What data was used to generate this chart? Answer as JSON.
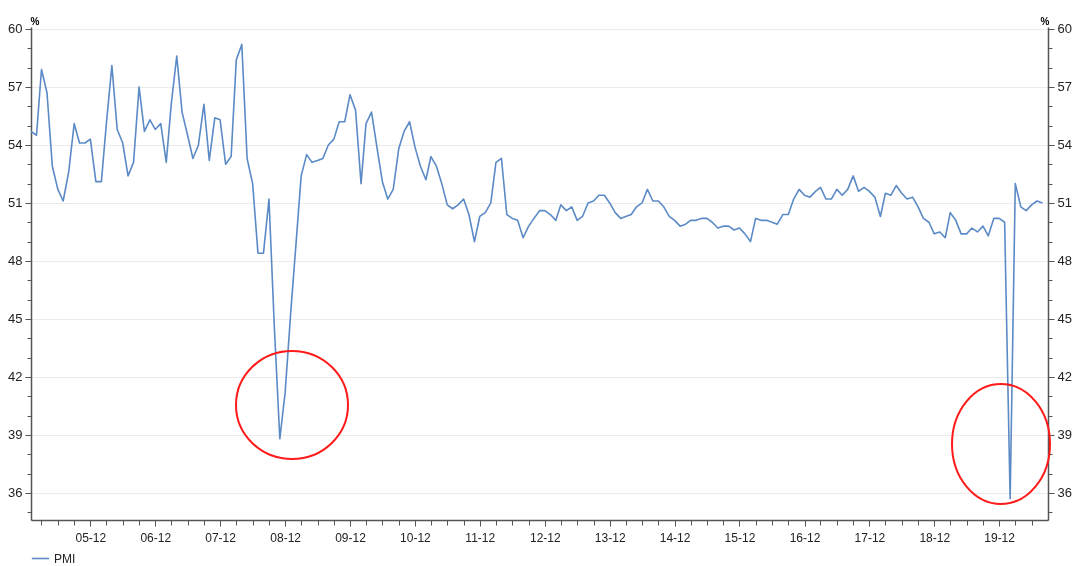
{
  "chart_data": {
    "type": "line",
    "x": [
      "2005-01",
      "2005-02",
      "2005-03",
      "2005-04",
      "2005-05",
      "2005-06",
      "2005-07",
      "2005-08",
      "2005-09",
      "2005-10",
      "2005-11",
      "2005-12",
      "2006-01",
      "2006-02",
      "2006-03",
      "2006-04",
      "2006-05",
      "2006-06",
      "2006-07",
      "2006-08",
      "2006-09",
      "2006-10",
      "2006-11",
      "2006-12",
      "2007-01",
      "2007-02",
      "2007-03",
      "2007-04",
      "2007-05",
      "2007-06",
      "2007-07",
      "2007-08",
      "2007-09",
      "2007-10",
      "2007-11",
      "2007-12",
      "2008-01",
      "2008-02",
      "2008-03",
      "2008-04",
      "2008-05",
      "2008-06",
      "2008-07",
      "2008-08",
      "2008-09",
      "2008-10",
      "2008-11",
      "2008-12",
      "2009-01",
      "2009-02",
      "2009-03",
      "2009-04",
      "2009-05",
      "2009-06",
      "2009-07",
      "2009-08",
      "2009-09",
      "2009-10",
      "2009-11",
      "2009-12",
      "2010-01",
      "2010-02",
      "2010-03",
      "2010-04",
      "2010-05",
      "2010-06",
      "2010-07",
      "2010-08",
      "2010-09",
      "2010-10",
      "2010-11",
      "2010-12",
      "2011-01",
      "2011-02",
      "2011-03",
      "2011-04",
      "2011-05",
      "2011-06",
      "2011-07",
      "2011-08",
      "2011-09",
      "2011-10",
      "2011-11",
      "2011-12",
      "2012-01",
      "2012-02",
      "2012-03",
      "2012-04",
      "2012-05",
      "2012-06",
      "2012-07",
      "2012-08",
      "2012-09",
      "2012-10",
      "2012-11",
      "2012-12",
      "2013-01",
      "2013-02",
      "2013-03",
      "2013-04",
      "2013-05",
      "2013-06",
      "2013-07",
      "2013-08",
      "2013-09",
      "2013-10",
      "2013-11",
      "2013-12",
      "2014-01",
      "2014-02",
      "2014-03",
      "2014-04",
      "2014-05",
      "2014-06",
      "2014-07",
      "2014-08",
      "2014-09",
      "2014-10",
      "2014-11",
      "2014-12",
      "2015-01",
      "2015-02",
      "2015-03",
      "2015-04",
      "2015-05",
      "2015-06",
      "2015-07",
      "2015-08",
      "2015-09",
      "2015-10",
      "2015-11",
      "2015-12",
      "2016-01",
      "2016-02",
      "2016-03",
      "2016-04",
      "2016-05",
      "2016-06",
      "2016-07",
      "2016-08",
      "2016-09",
      "2016-10",
      "2016-11",
      "2016-12",
      "2017-01",
      "2017-02",
      "2017-03",
      "2017-04",
      "2017-05",
      "2017-06",
      "2017-07",
      "2017-08",
      "2017-09",
      "2017-10",
      "2017-11",
      "2017-12",
      "2018-01",
      "2018-02",
      "2018-03",
      "2018-04",
      "2018-05",
      "2018-06",
      "2018-07",
      "2018-08",
      "2018-09",
      "2018-10",
      "2018-11",
      "2018-12",
      "2019-01",
      "2019-02",
      "2019-03",
      "2019-04",
      "2019-05",
      "2019-06",
      "2019-07",
      "2019-08",
      "2019-09",
      "2019-10",
      "2019-11",
      "2019-12",
      "2020-01",
      "2020-02",
      "2020-03",
      "2020-04",
      "2020-05",
      "2020-06",
      "2020-07",
      "2020-08"
    ],
    "series": [
      {
        "name": "PMI",
        "color": "#5b8ac6",
        "values": [
          54.7,
          54.5,
          57.9,
          56.7,
          52.9,
          51.7,
          51.1,
          52.6,
          55.1,
          54.1,
          54.1,
          54.3,
          52.1,
          52.1,
          55.1,
          58.1,
          54.8,
          54.1,
          52.4,
          53.1,
          57.0,
          54.7,
          55.3,
          54.8,
          55.1,
          53.1,
          56.1,
          58.6,
          55.7,
          54.5,
          53.3,
          54.0,
          56.1,
          53.2,
          55.4,
          55.3,
          53.0,
          53.4,
          58.4,
          59.2,
          53.3,
          52.0,
          48.4,
          48.4,
          51.2,
          44.6,
          38.8,
          41.2,
          45.3,
          49.0,
          52.4,
          53.5,
          53.1,
          53.2,
          53.3,
          54.0,
          54.3,
          55.2,
          55.2,
          56.6,
          55.8,
          52.0,
          55.1,
          55.7,
          53.9,
          52.1,
          51.2,
          51.7,
          53.8,
          54.7,
          55.2,
          53.9,
          52.9,
          52.2,
          53.4,
          52.9,
          52.0,
          50.9,
          50.7,
          50.9,
          51.2,
          50.4,
          49.0,
          50.3,
          50.5,
          51.0,
          53.1,
          53.3,
          50.4,
          50.2,
          50.1,
          49.2,
          49.8,
          50.2,
          50.6,
          50.6,
          50.4,
          50.1,
          50.9,
          50.6,
          50.8,
          50.1,
          50.3,
          51.0,
          51.1,
          51.4,
          51.4,
          51.0,
          50.5,
          50.2,
          50.3,
          50.4,
          50.8,
          51.0,
          51.7,
          51.1,
          51.1,
          50.8,
          50.3,
          50.1,
          49.8,
          49.9,
          50.1,
          50.1,
          50.2,
          50.2,
          50.0,
          49.7,
          49.8,
          49.8,
          49.6,
          49.7,
          49.4,
          49.0,
          50.2,
          50.1,
          50.1,
          50.0,
          49.9,
          50.4,
          50.4,
          51.2,
          51.7,
          51.4,
          51.3,
          51.6,
          51.8,
          51.2,
          51.2,
          51.7,
          51.4,
          51.7,
          52.4,
          51.6,
          51.8,
          51.6,
          51.3,
          50.3,
          51.5,
          51.4,
          51.9,
          51.5,
          51.2,
          51.3,
          50.8,
          50.2,
          50.0,
          49.4,
          49.5,
          49.2,
          50.5,
          50.1,
          49.4,
          49.4,
          49.7,
          49.5,
          49.8,
          49.3,
          50.2,
          50.2,
          50.0,
          35.7,
          52.0,
          50.8,
          50.6,
          50.9,
          51.1,
          51.0
        ]
      }
    ],
    "ylabel": "%",
    "y2label": "%",
    "xlim": [
      "2005-01",
      "2020-09"
    ],
    "xticks": [
      {
        "value": "2005-03",
        "label": null
      },
      {
        "value": "2005-06",
        "label": null
      },
      {
        "value": "2005-09",
        "label": null
      },
      {
        "value": "2005-12",
        "label": "05-12"
      },
      {
        "value": "2006-03",
        "label": null
      },
      {
        "value": "2006-06",
        "label": null
      },
      {
        "value": "2006-09",
        "label": null
      },
      {
        "value": "2006-12",
        "label": "06-12"
      },
      {
        "value": "2007-03",
        "label": null
      },
      {
        "value": "2007-06",
        "label": null
      },
      {
        "value": "2007-09",
        "label": null
      },
      {
        "value": "2007-12",
        "label": "07-12"
      },
      {
        "value": "2008-03",
        "label": null
      },
      {
        "value": "2008-06",
        "label": null
      },
      {
        "value": "2008-09",
        "label": null
      },
      {
        "value": "2008-12",
        "label": "08-12"
      },
      {
        "value": "2009-03",
        "label": null
      },
      {
        "value": "2009-06",
        "label": null
      },
      {
        "value": "2009-09",
        "label": null
      },
      {
        "value": "2009-12",
        "label": "09-12"
      },
      {
        "value": "2010-03",
        "label": null
      },
      {
        "value": "2010-06",
        "label": null
      },
      {
        "value": "2010-09",
        "label": null
      },
      {
        "value": "2010-12",
        "label": "10-12"
      },
      {
        "value": "2011-03",
        "label": null
      },
      {
        "value": "2011-06",
        "label": null
      },
      {
        "value": "2011-09",
        "label": null
      },
      {
        "value": "2011-12",
        "label": "11-12"
      },
      {
        "value": "2012-03",
        "label": null
      },
      {
        "value": "2012-06",
        "label": null
      },
      {
        "value": "2012-09",
        "label": null
      },
      {
        "value": "2012-12",
        "label": "12-12"
      },
      {
        "value": "2013-03",
        "label": null
      },
      {
        "value": "2013-06",
        "label": null
      },
      {
        "value": "2013-09",
        "label": null
      },
      {
        "value": "2013-12",
        "label": "13-12"
      },
      {
        "value": "2014-03",
        "label": null
      },
      {
        "value": "2014-06",
        "label": null
      },
      {
        "value": "2014-09",
        "label": null
      },
      {
        "value": "2014-12",
        "label": "14-12"
      },
      {
        "value": "2015-03",
        "label": null
      },
      {
        "value": "2015-06",
        "label": null
      },
      {
        "value": "2015-09",
        "label": null
      },
      {
        "value": "2015-12",
        "label": "15-12"
      },
      {
        "value": "2016-03",
        "label": null
      },
      {
        "value": "2016-06",
        "label": null
      },
      {
        "value": "2016-09",
        "label": null
      },
      {
        "value": "2016-12",
        "label": "16-12"
      },
      {
        "value": "2017-03",
        "label": null
      },
      {
        "value": "2017-06",
        "label": null
      },
      {
        "value": "2017-09",
        "label": null
      },
      {
        "value": "2017-12",
        "label": "17-12"
      },
      {
        "value": "2018-03",
        "label": null
      },
      {
        "value": "2018-06",
        "label": null
      },
      {
        "value": "2018-09",
        "label": null
      },
      {
        "value": "2018-12",
        "label": "18-12"
      },
      {
        "value": "2019-03",
        "label": null
      },
      {
        "value": "2019-06",
        "label": null
      },
      {
        "value": "2019-09",
        "label": null
      },
      {
        "value": "2019-12",
        "label": "19-12"
      },
      {
        "value": "2020-03",
        "label": null
      },
      {
        "value": "2020-06",
        "label": null
      }
    ],
    "ylim": [
      34.6,
      60.1
    ],
    "yticks": [
      {
        "value": 35,
        "label": null
      },
      36,
      {
        "value": 37,
        "label": null
      },
      {
        "value": 38,
        "label": null
      },
      39,
      {
        "value": 40,
        "label": null
      },
      {
        "value": 41,
        "label": null
      },
      42,
      {
        "value": 43,
        "label": null
      },
      {
        "value": 44,
        "label": null
      },
      45,
      {
        "value": 46,
        "label": null
      },
      {
        "value": 47,
        "label": null
      },
      48,
      {
        "value": 49,
        "label": null
      },
      {
        "value": 50,
        "label": null
      },
      51,
      {
        "value": 52,
        "label": null
      },
      {
        "value": 53,
        "label": null
      },
      54,
      {
        "value": 55,
        "label": null
      },
      {
        "value": 56,
        "label": null
      },
      57,
      {
        "value": 58,
        "label": null
      },
      {
        "value": 59,
        "label": null
      },
      60
    ],
    "y2lim": [
      34.6,
      60.1
    ],
    "y2ticks": [
      {
        "value": 35,
        "label": null
      },
      36,
      {
        "value": 37,
        "label": null
      },
      {
        "value": 38,
        "label": null
      },
      39,
      {
        "value": 40,
        "label": null
      },
      {
        "value": 41,
        "label": null
      },
      42,
      {
        "value": 43,
        "label": null
      },
      {
        "value": 44,
        "label": null
      },
      45,
      {
        "value": 46,
        "label": null
      },
      {
        "value": 47,
        "label": null
      },
      48,
      {
        "value": 49,
        "label": null
      },
      {
        "value": 50,
        "label": null
      },
      51,
      {
        "value": 52,
        "label": null
      },
      {
        "value": 53,
        "label": null
      },
      54,
      {
        "value": 55,
        "label": null
      },
      {
        "value": 56,
        "label": null
      },
      57,
      {
        "value": 58,
        "label": null
      },
      {
        "value": 59,
        "label": null
      },
      60
    ],
    "grid": "y",
    "legend": "bottom"
  }
}
